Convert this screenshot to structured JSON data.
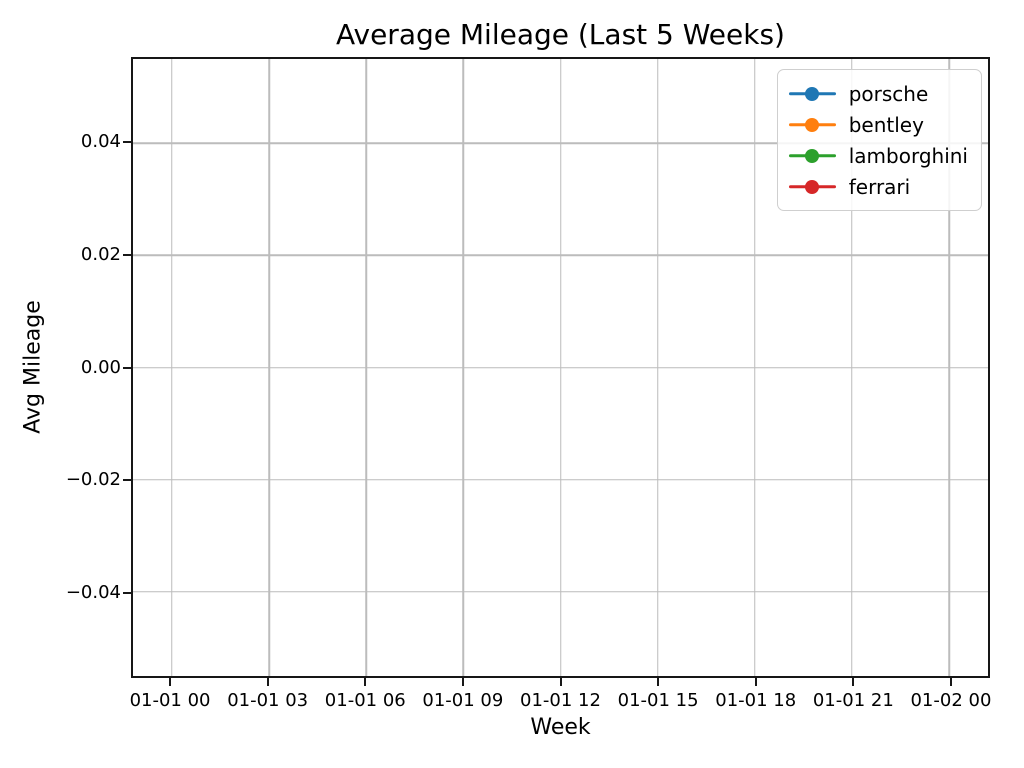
{
  "chart_data": {
    "type": "line",
    "title": "Average Mileage (Last 5 Weeks)",
    "xlabel": "Week",
    "ylabel": "Avg Mileage",
    "x_tick_labels": [
      "01-01 00",
      "01-01 03",
      "01-01 06",
      "01-01 09",
      "01-01 12",
      "01-01 15",
      "01-01 18",
      "01-01 21",
      "01-02 00"
    ],
    "y_tick_labels": [
      "0.04",
      "0.02",
      "0.00",
      "−0.02",
      "−0.04"
    ],
    "y_ticks": [
      0.04,
      0.02,
      0.0,
      -0.02,
      -0.04
    ],
    "ylim": [
      -0.055,
      0.055
    ],
    "grid": true,
    "legend_position": "upper right",
    "series": [
      {
        "name": "porsche",
        "color": "#1f77b4",
        "values": []
      },
      {
        "name": "bentley",
        "color": "#ff7f0e",
        "values": []
      },
      {
        "name": "lamborghini",
        "color": "#2ca02c",
        "values": []
      },
      {
        "name": "ferrari",
        "color": "#d62728",
        "values": []
      }
    ]
  },
  "colors": {
    "background": "#ffffff",
    "spine": "#171717",
    "grid": "#bcbcbc",
    "legend_border": "#cfcfcf",
    "text": "#000000"
  }
}
